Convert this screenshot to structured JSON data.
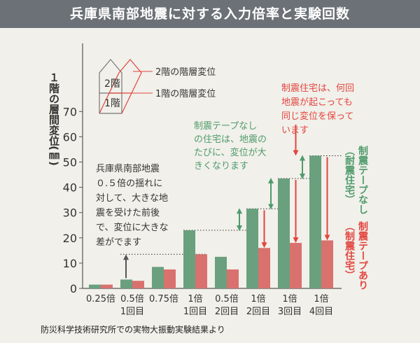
{
  "title": "兵庫県南部地震に対する入力倍率と実験回数",
  "source": "防災科学技術研究所での実物大振動実験結果より",
  "colors": {
    "no_tape": "#6aa07e",
    "with_tape": "#d9716e",
    "red": "#e3453f",
    "green": "#4f9b6b",
    "title_bg": "#6b7176",
    "bg": "#f1f0ea"
  },
  "chart_data": {
    "type": "bar",
    "ylabel": "１階の層間変位(㎜)",
    "ylim": [
      0,
      78
    ],
    "yticks": [
      0,
      10,
      20,
      30,
      40,
      50,
      60,
      70
    ],
    "categories": [
      [
        "0.25倍"
      ],
      [
        "0.5倍",
        "1回目"
      ],
      [
        "0.75倍"
      ],
      [
        "1倍",
        "1回目"
      ],
      [
        "0.5倍",
        "2回目"
      ],
      [
        "1倍",
        "2回目"
      ],
      [
        "1倍",
        "3回目"
      ],
      [
        "1倍",
        "4回目"
      ]
    ],
    "series": [
      {
        "values": [
          1.5,
          3.5,
          8.5,
          23,
          12.5,
          31.5,
          43.5,
          52.5
        ]
      },
      {
        "values": [
          1.5,
          3,
          7.5,
          13.5,
          7.5,
          16,
          18,
          19
        ]
      }
    ],
    "legend": {
      "no_tape": [
        "制震テープなし",
        "（耐震住宅）"
      ],
      "with_tape": [
        "制震テープあり",
        "（制震住宅）"
      ]
    },
    "house_diagram": {
      "floor2": "2階",
      "floor1": "1階",
      "label2": "2階の階層変位",
      "label1": "1階の階層変位"
    },
    "annotations": {
      "quake": [
        "兵庫県南部地震",
        "０.５倍の揺れに",
        "対して、大きな地",
        "震を受けた前後",
        "で、変位に大きな",
        "差がでます"
      ],
      "no_tape": [
        "制震テープなし",
        "の住宅は、地震の",
        "たびに、変位が大",
        "きくなります"
      ],
      "with_tape": [
        "制震住宅は、何回",
        "地震が起こっても",
        "同じ変位を保って",
        "います"
      ]
    }
  }
}
